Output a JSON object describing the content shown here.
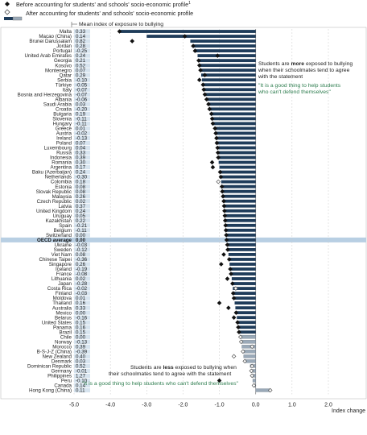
{
  "legend": {
    "before_label": "Before accounting for students' and schools' socio-economic profile",
    "before_sup": "1",
    "after_label": "After accounting for students' and schools' socio-economic profile"
  },
  "header_note": "Mean index of exposure to bullying",
  "annotation_top": {
    "line1_pre": "Students are ",
    "line1_bold": "more",
    "line1_post": " exposed to bullying",
    "line2": "when their schoolmates tend to agree",
    "line3": "with the statement",
    "quote1": "\"It is a good thing to help students",
    "quote2": "who can't defend themselves\""
  },
  "annotation_bottom": {
    "line1_pre": "Students are ",
    "line1_bold": "less",
    "line1_post": " exposed to bullying when",
    "line2": "their schoolmates tend to agree with the statement",
    "quote": "\"It is a good thing to help students who can't defend themselves\""
  },
  "axis": {
    "xlabel": "Index change"
  },
  "colors": {
    "dark_bar": "#1f3c5a",
    "light_bar": "#9aa9b8",
    "label_bg": "#d7e4ef",
    "oecd_band": "#b8cfe3",
    "green_text": "#2e7d4f",
    "header_bg": "#2b2b2b"
  },
  "chart_data": {
    "type": "bar",
    "xlim": [
      -5.0,
      2.0
    ],
    "xticks": [
      -5.0,
      -4.0,
      -3.0,
      -2.0,
      -1.0,
      0.0,
      1.0,
      2.0
    ],
    "xtick_labels": [
      "-5.0",
      "-4.0",
      "-3.0",
      "-2.0",
      "-1.0",
      "0.0",
      "1.0",
      "2.0"
    ],
    "highlight": "OECD average",
    "rows": [
      {
        "country": "Malta",
        "index": "0.33",
        "after": -3.75,
        "after_sig": true,
        "before": -3.75,
        "before_sig": true
      },
      {
        "country": "Macao (China)",
        "index": "0.14",
        "after": -3.0,
        "after_sig": true,
        "before": -1.95,
        "before_sig": true
      },
      {
        "country": "Brunei Darussalam",
        "index": "0.82",
        "after": -1.8,
        "after_sig": true,
        "before": -3.4,
        "before_sig": true
      },
      {
        "country": "Jordan",
        "index": "0.28",
        "after": -1.72,
        "after_sig": true,
        "before": -1.72,
        "before_sig": true
      },
      {
        "country": "Portugal",
        "index": "-0.25",
        "after": -1.67,
        "after_sig": true,
        "before": -1.67,
        "before_sig": true
      },
      {
        "country": "United Arab Emirates",
        "index": "0.24",
        "after": -1.6,
        "after_sig": true,
        "before": -1.05,
        "before_sig": true
      },
      {
        "country": "Georgia",
        "index": "0.21",
        "after": -1.57,
        "after_sig": true,
        "before": -1.57,
        "before_sig": true
      },
      {
        "country": "Kosovo",
        "index": "0.52",
        "after": -1.55,
        "after_sig": true,
        "before": -1.55,
        "before_sig": true
      },
      {
        "country": "Montenegro",
        "index": "0.07",
        "after": -1.52,
        "after_sig": true,
        "before": -1.52,
        "before_sig": true
      },
      {
        "country": "Qatar",
        "index": "0.29",
        "after": -1.5,
        "after_sig": true,
        "before": -1.4,
        "before_sig": true
      },
      {
        "country": "Serbia",
        "index": "-0.10",
        "after": -1.48,
        "after_sig": true,
        "before": -1.55,
        "before_sig": true
      },
      {
        "country": "Türkiye",
        "index": "-0.05",
        "after": -1.45,
        "after_sig": true,
        "before": -1.45,
        "before_sig": true
      },
      {
        "country": "Italy",
        "index": "-0.07",
        "after": -1.43,
        "after_sig": true,
        "before": -1.43,
        "before_sig": true
      },
      {
        "country": "Bosnia and Herzegovina",
        "index": "-0.07",
        "after": -1.4,
        "after_sig": true,
        "before": -1.4,
        "before_sig": true
      },
      {
        "country": "Albania",
        "index": "-0.06",
        "after": -1.35,
        "after_sig": true,
        "before": -1.35,
        "before_sig": true
      },
      {
        "country": "Saudi Arabia",
        "index": "0.03",
        "after": -1.3,
        "after_sig": true,
        "before": -1.3,
        "before_sig": true
      },
      {
        "country": "Croatia",
        "index": "-0.20",
        "after": -1.27,
        "after_sig": true,
        "before": -1.27,
        "before_sig": true
      },
      {
        "country": "Bulgaria",
        "index": "0.19",
        "after": -1.22,
        "after_sig": true,
        "before": -1.22,
        "before_sig": true
      },
      {
        "country": "Slovenia",
        "index": "-0.11",
        "after": -1.2,
        "after_sig": true,
        "before": -1.2,
        "before_sig": true
      },
      {
        "country": "Hungary",
        "index": "-0.11",
        "after": -1.18,
        "after_sig": true,
        "before": -1.18,
        "before_sig": true
      },
      {
        "country": "Greece",
        "index": "0.01",
        "after": -1.12,
        "after_sig": true,
        "before": -1.12,
        "before_sig": true
      },
      {
        "country": "Austria",
        "index": "-0.02",
        "after": -1.1,
        "after_sig": true,
        "before": -1.1,
        "before_sig": true
      },
      {
        "country": "Ireland",
        "index": "-0.13",
        "after": -1.08,
        "after_sig": true,
        "before": -1.08,
        "before_sig": true
      },
      {
        "country": "Poland",
        "index": "0.07",
        "after": -1.07,
        "after_sig": true,
        "before": -1.07,
        "before_sig": true
      },
      {
        "country": "Luxembourg",
        "index": "0.04",
        "after": -1.05,
        "after_sig": true,
        "before": -1.05,
        "before_sig": true
      },
      {
        "country": "Russia",
        "index": "0.33",
        "after": -1.04,
        "after_sig": true,
        "before": -1.04,
        "before_sig": true
      },
      {
        "country": "Indonesia",
        "index": "0.39",
        "after": -1.03,
        "after_sig": true,
        "before": -1.03,
        "before_sig": true
      },
      {
        "country": "Romania",
        "index": "0.30",
        "after": -1.02,
        "after_sig": true,
        "before": -1.2,
        "before_sig": true
      },
      {
        "country": "Argentina",
        "index": "0.17",
        "after": -1.0,
        "after_sig": true,
        "before": -1.18,
        "before_sig": true
      },
      {
        "country": "Baku (Azerbaijan)",
        "index": "0.24",
        "after": -0.98,
        "after_sig": true,
        "before": -0.98,
        "before_sig": true
      },
      {
        "country": "Netherlands",
        "index": "-0.30",
        "after": -0.96,
        "after_sig": true,
        "before": -0.96,
        "before_sig": true
      },
      {
        "country": "Colombia",
        "index": "0.18",
        "after": -0.95,
        "after_sig": true,
        "before": -1.03,
        "before_sig": false
      },
      {
        "country": "Estonia",
        "index": "0.08",
        "after": -0.93,
        "after_sig": true,
        "before": -0.93,
        "before_sig": true
      },
      {
        "country": "Slovak Republic",
        "index": "0.08",
        "after": -0.92,
        "after_sig": true,
        "before": -0.92,
        "before_sig": true
      },
      {
        "country": "Malaysia",
        "index": "0.26",
        "after": -0.9,
        "after_sig": true,
        "before": -0.9,
        "before_sig": true
      },
      {
        "country": "Czech Republic",
        "index": "0.02",
        "after": -0.88,
        "after_sig": true,
        "before": -0.88,
        "before_sig": true
      },
      {
        "country": "Latvia",
        "index": "0.37",
        "after": -0.87,
        "after_sig": true,
        "before": -0.87,
        "before_sig": true
      },
      {
        "country": "United Kingdom",
        "index": "0.24",
        "after": -0.86,
        "after_sig": true,
        "before": -0.86,
        "before_sig": true
      },
      {
        "country": "Uruguay",
        "index": "0.05",
        "after": -0.85,
        "after_sig": true,
        "before": -0.85,
        "before_sig": true
      },
      {
        "country": "Kazakhstan",
        "index": "0.22",
        "after": -0.84,
        "after_sig": true,
        "before": -0.84,
        "before_sig": true
      },
      {
        "country": "Spain",
        "index": "-0.21",
        "after": -0.83,
        "after_sig": true,
        "before": -0.83,
        "before_sig": true
      },
      {
        "country": "Belgium",
        "index": "-0.11",
        "after": -0.82,
        "after_sig": true,
        "before": -0.82,
        "before_sig": true
      },
      {
        "country": "Switzerland",
        "index": "0.00",
        "after": -0.81,
        "after_sig": true,
        "before": -0.81,
        "before_sig": true
      },
      {
        "country": "OECD average",
        "index": "0.00",
        "after": -0.8,
        "after_sig": true,
        "before": -0.8,
        "before_sig": true
      },
      {
        "country": "Ukraine",
        "index": "-0.03",
        "after": -0.78,
        "after_sig": true,
        "before": -0.78,
        "before_sig": true
      },
      {
        "country": "Sweden",
        "index": "-0.12",
        "after": -0.77,
        "after_sig": true,
        "before": -0.77,
        "before_sig": true
      },
      {
        "country": "Viet Nam",
        "index": "0.08",
        "after": -0.75,
        "after_sig": true,
        "before": -0.88,
        "before_sig": true
      },
      {
        "country": "Chinese Taipei",
        "index": "-0.36",
        "after": -0.73,
        "after_sig": true,
        "before": -0.73,
        "before_sig": true
      },
      {
        "country": "Singapore",
        "index": "0.26",
        "after": -0.72,
        "after_sig": true,
        "before": -0.95,
        "before_sig": true
      },
      {
        "country": "Iceland",
        "index": "-0.19",
        "after": -0.7,
        "after_sig": true,
        "before": -0.7,
        "before_sig": true
      },
      {
        "country": "France",
        "index": "-0.08",
        "after": -0.68,
        "after_sig": true,
        "before": -0.68,
        "before_sig": true
      },
      {
        "country": "Lithuania",
        "index": "0.02",
        "after": -0.66,
        "after_sig": true,
        "before": -0.78,
        "before_sig": true
      },
      {
        "country": "Japan",
        "index": "-0.28",
        "after": -0.64,
        "after_sig": true,
        "before": -0.64,
        "before_sig": true
      },
      {
        "country": "Costa Rica",
        "index": "-0.02",
        "after": -0.63,
        "after_sig": true,
        "before": -0.55,
        "before_sig": false
      },
      {
        "country": "Finland",
        "index": "-0.03",
        "after": -0.62,
        "after_sig": true,
        "before": -0.62,
        "before_sig": true
      },
      {
        "country": "Moldova",
        "index": "0.01",
        "after": -0.6,
        "after_sig": true,
        "before": -0.6,
        "before_sig": true
      },
      {
        "country": "Thailand",
        "index": "0.16",
        "after": -0.58,
        "after_sig": true,
        "before": -1.0,
        "before_sig": true
      },
      {
        "country": "Australia",
        "index": "0.33",
        "after": -0.56,
        "after_sig": true,
        "before": -0.75,
        "before_sig": true
      },
      {
        "country": "Mexico",
        "index": "0.00",
        "after": -0.54,
        "after_sig": true,
        "before": -0.54,
        "before_sig": true
      },
      {
        "country": "Belarus",
        "index": "-0.16",
        "after": -0.52,
        "after_sig": true,
        "before": -0.6,
        "before_sig": true
      },
      {
        "country": "United States",
        "index": "0.15",
        "after": -0.5,
        "after_sig": true,
        "before": -0.5,
        "before_sig": true
      },
      {
        "country": "Panama",
        "index": "0.16",
        "after": -0.48,
        "after_sig": true,
        "before": -0.48,
        "before_sig": true
      },
      {
        "country": "Brazil",
        "index": "0.15",
        "after": -0.46,
        "after_sig": true,
        "before": -0.46,
        "before_sig": true
      },
      {
        "country": "Chile",
        "index": "0.00",
        "after": -0.42,
        "after_sig": false,
        "before": -0.42,
        "before_sig": false
      },
      {
        "country": "Norway",
        "index": "-0.13",
        "after": -0.4,
        "after_sig": false,
        "before": -0.4,
        "before_sig": false
      },
      {
        "country": "Morocco",
        "index": "0.39",
        "after": -0.38,
        "after_sig": false,
        "before": -0.1,
        "before_sig": false
      },
      {
        "country": "B-S-J-Z (China)",
        "index": "-0.39",
        "after": -0.35,
        "after_sig": false,
        "before": -0.35,
        "before_sig": false
      },
      {
        "country": "New Zealand",
        "index": "0.40",
        "after": -0.33,
        "after_sig": false,
        "before": -0.6,
        "before_sig": false
      },
      {
        "country": "Denmark",
        "index": "0.03",
        "after": -0.3,
        "after_sig": false,
        "before": -0.3,
        "before_sig": false
      },
      {
        "country": "Dominican Republic",
        "index": "0.52",
        "after": -0.15,
        "after_sig": false,
        "before": -0.1,
        "before_sig": false
      },
      {
        "country": "Germany",
        "index": "-0.01",
        "after": -0.12,
        "after_sig": false,
        "before": -0.12,
        "before_sig": false
      },
      {
        "country": "Philippines",
        "index": "1.27",
        "after": -0.1,
        "after_sig": false,
        "before": -0.1,
        "before_sig": false
      },
      {
        "country": "Peru",
        "index": "-0.10",
        "after": -0.08,
        "after_sig": false,
        "before": -1.0,
        "before_sig": true
      },
      {
        "country": "Canada",
        "index": "0.14",
        "after": -0.05,
        "after_sig": false,
        "before": -0.05,
        "before_sig": false
      },
      {
        "country": "Hong Kong (China)",
        "index": "0.11",
        "after": 0.4,
        "after_sig": false,
        "before": 0.4,
        "before_sig": false
      }
    ]
  }
}
